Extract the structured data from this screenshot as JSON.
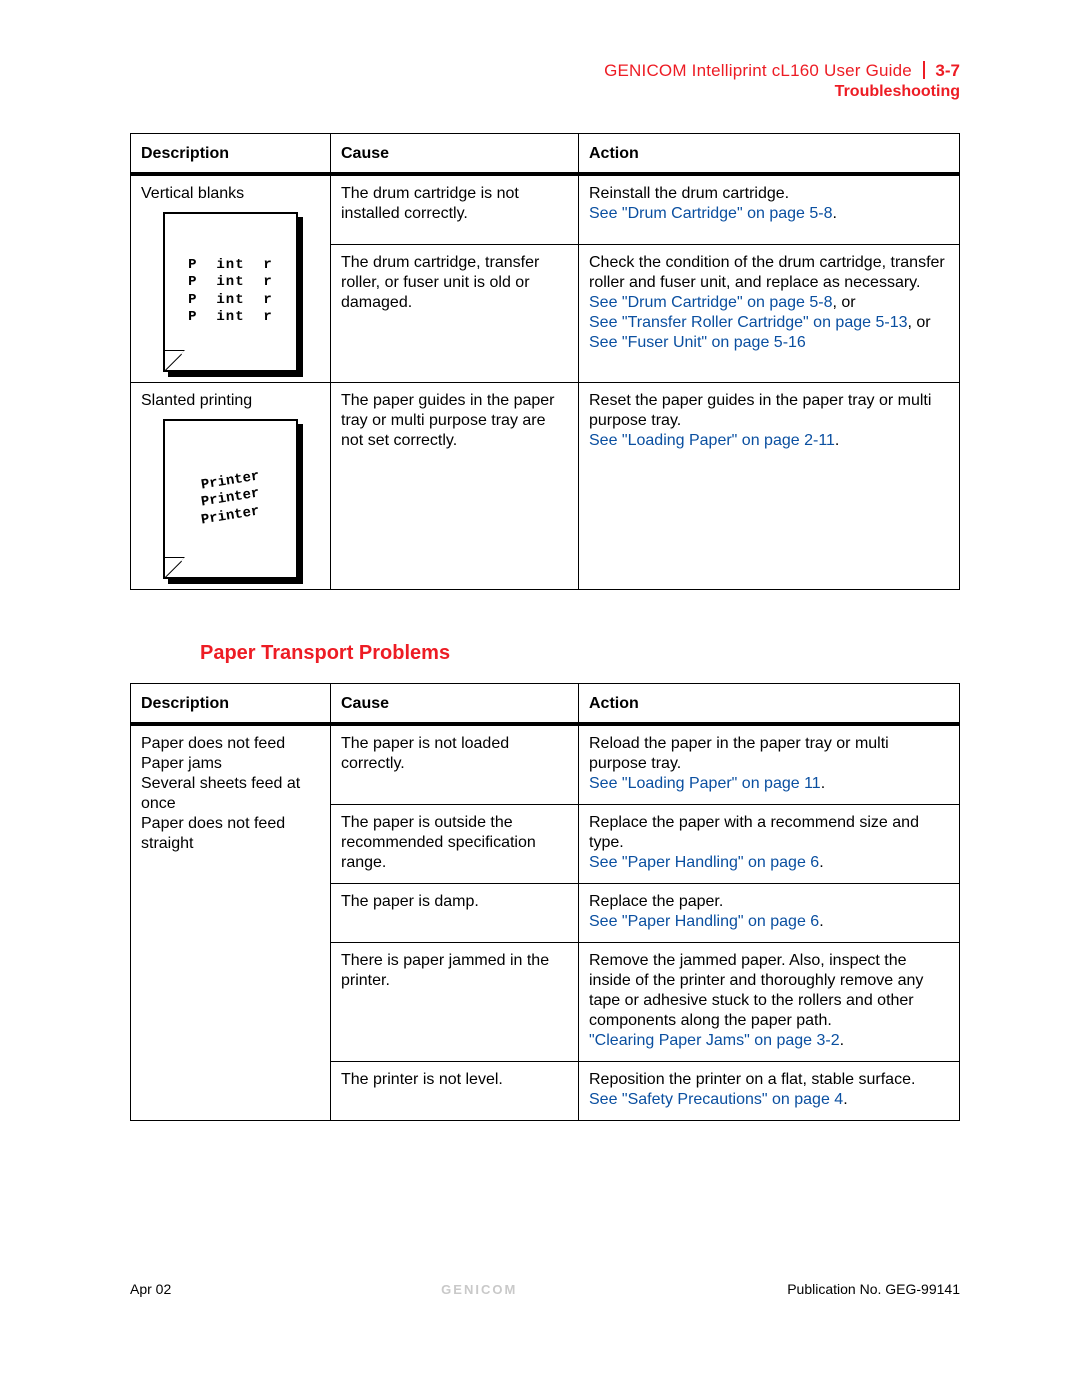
{
  "header": {
    "title": "GENICOM Intelliprint cL160 User Guide",
    "page": "3-7",
    "subtitle": "Troubleshooting",
    "title_color": "#ed1c24"
  },
  "table1": {
    "columns": [
      "Description",
      "Cause",
      "Action"
    ],
    "rows": [
      {
        "desc": "Vertical blanks",
        "illus_lines": [
          "Pr int er",
          "Pr int er",
          "Pr int er",
          "Pr int er"
        ],
        "cause": "The drum cartridge is not installed correctly.",
        "action_plain": "Reinstall the drum cartridge.",
        "link1": "See \"Drum Cartridge\" on page 5-8",
        "link1_tail": "."
      },
      {
        "cause": "The drum cartridge, transfer roller, or fuser unit is old or damaged.",
        "action_plain": "Check the condition of the drum cartridge, transfer roller and fuser unit, and replace as necessary.",
        "link1": "See \"Drum Cartridge\" on page 5-8",
        "link1_tail": ", or",
        "link2": "See \"Transfer Roller Cartridge\" on page 5-13",
        "link2_tail": ", or ",
        "link3": "See \"Fuser Unit\" on page 5-16"
      },
      {
        "desc": "Slanted printing",
        "illus_lines": [
          "Printer",
          "Printer",
          "Printer"
        ],
        "cause": "The paper guides in the paper tray or multi purpose tray are not set correctly.",
        "action_plain": "Reset the paper guides in the paper tray or multi purpose tray.",
        "link1": "See \"Loading Paper\" on page 2-11",
        "link1_tail": "."
      }
    ]
  },
  "section_heading": "Paper Transport Problems",
  "table2": {
    "columns": [
      "Description",
      "Cause",
      "Action"
    ],
    "desc_lines": [
      "Paper does not feed",
      "Paper jams",
      "Several sheets feed at once",
      "Paper does not feed straight"
    ],
    "rows": [
      {
        "cause": "The paper is not loaded correctly.",
        "action_plain": "Reload the paper in the paper tray or multi purpose tray.",
        "link1": "See \"Loading Paper\" on page 11",
        "link1_tail": "."
      },
      {
        "cause": "The paper is outside the recommended specification range.",
        "action_plain": "Replace the paper with a recommend size and type.",
        "link1": "See \"Paper Handling\" on page 6",
        "link1_tail": "."
      },
      {
        "cause": "The paper is damp.",
        "action_plain": "Replace the paper.",
        "link1": "See \"Paper Handling\" on page 6",
        "link1_tail": "."
      },
      {
        "cause": "There is paper jammed in the printer.",
        "action_plain": "Remove the jammed paper. Also, inspect the inside of the printer and thoroughly remove any tape or adhesive stuck to the rollers and other components along the paper path.",
        "link1": "\"Clearing Paper Jams\" on page 3-2",
        "link1_tail": "."
      },
      {
        "cause": "The printer is not level.",
        "action_plain": "Reposition the printer on a flat, stable surface.",
        "link1": "See \"Safety Precautions\" on page 4",
        "link1_tail": "."
      }
    ]
  },
  "footer": {
    "left": "Apr 02",
    "center": "GENICOM",
    "right": "Publication No. GEG-99141"
  },
  "link_color": "#0a4fa0"
}
